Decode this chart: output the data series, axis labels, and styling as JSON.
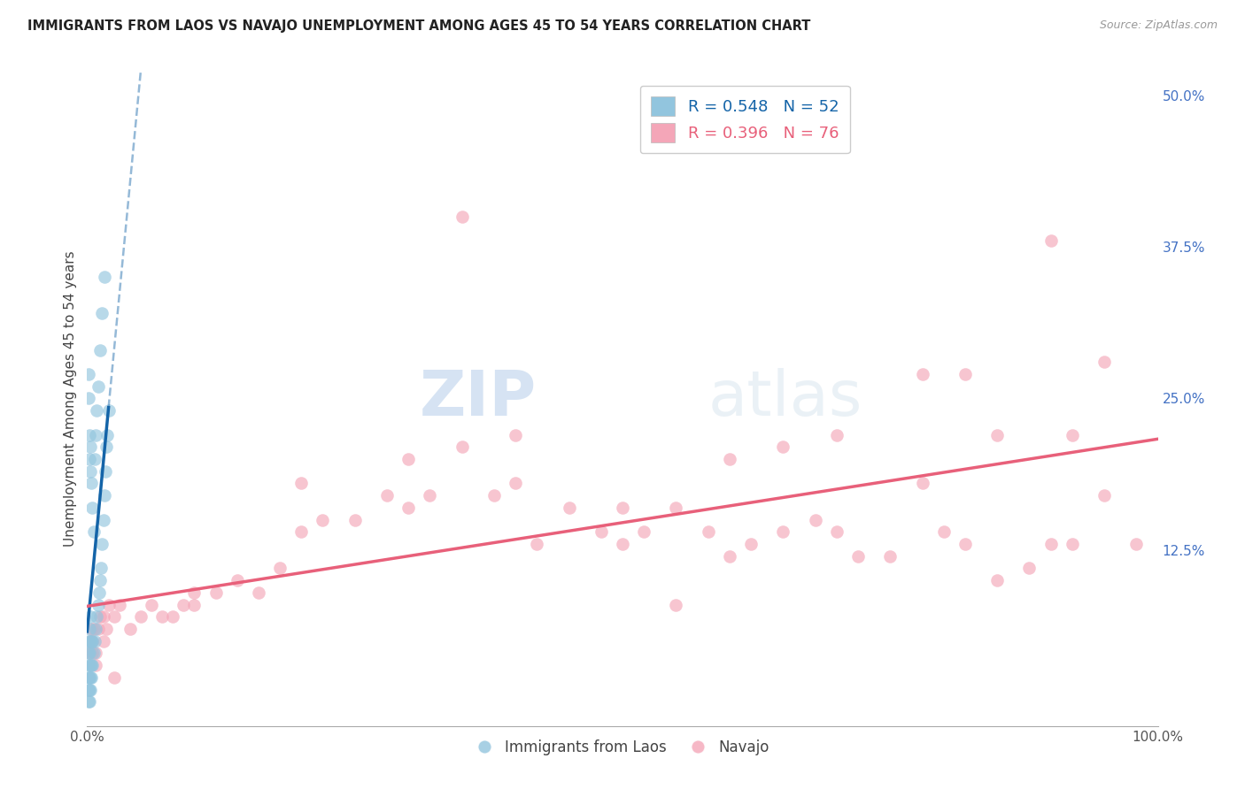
{
  "title": "IMMIGRANTS FROM LAOS VS NAVAJO UNEMPLOYMENT AMONG AGES 45 TO 54 YEARS CORRELATION CHART",
  "source": "Source: ZipAtlas.com",
  "ylabel_text": "Unemployment Among Ages 45 to 54 years",
  "xlim": [
    0,
    1.0
  ],
  "ylim": [
    -0.02,
    0.52
  ],
  "ytick_positions": [
    0.125,
    0.25,
    0.375,
    0.5
  ],
  "ytick_labels": [
    "12.5%",
    "25.0%",
    "37.5%",
    "50.0%"
  ],
  "grid_color": "#cccccc",
  "background_color": "#ffffff",
  "legend_r1": "R = 0.548",
  "legend_n1": "N = 52",
  "legend_r2": "R = 0.396",
  "legend_n2": "N = 76",
  "color_blue": "#92c5de",
  "color_pink": "#f4a6b8",
  "line_blue": "#1464a8",
  "line_pink": "#e8607a",
  "watermark_zip": "ZIP",
  "watermark_atlas": "atlas",
  "laos_x": [
    0.001,
    0.001,
    0.001,
    0.001,
    0.001,
    0.001,
    0.002,
    0.002,
    0.002,
    0.002,
    0.002,
    0.003,
    0.003,
    0.003,
    0.003,
    0.003,
    0.004,
    0.004,
    0.004,
    0.005,
    0.005,
    0.006,
    0.007,
    0.008,
    0.009,
    0.01,
    0.011,
    0.012,
    0.013,
    0.014,
    0.015,
    0.016,
    0.017,
    0.018,
    0.019,
    0.02,
    0.001,
    0.001,
    0.002,
    0.002,
    0.003,
    0.003,
    0.004,
    0.005,
    0.006,
    0.007,
    0.008,
    0.009,
    0.01,
    0.012,
    0.014,
    0.016
  ],
  "laos_y": [
    0.0,
    0.01,
    0.02,
    0.03,
    0.04,
    0.05,
    0.0,
    0.01,
    0.02,
    0.04,
    0.06,
    0.01,
    0.02,
    0.03,
    0.05,
    0.07,
    0.02,
    0.03,
    0.05,
    0.03,
    0.05,
    0.04,
    0.05,
    0.06,
    0.07,
    0.08,
    0.09,
    0.1,
    0.11,
    0.13,
    0.15,
    0.17,
    0.19,
    0.21,
    0.22,
    0.24,
    0.25,
    0.27,
    0.2,
    0.22,
    0.19,
    0.21,
    0.18,
    0.16,
    0.14,
    0.2,
    0.22,
    0.24,
    0.26,
    0.29,
    0.32,
    0.35
  ],
  "navajo_x": [
    0.002,
    0.003,
    0.004,
    0.005,
    0.006,
    0.008,
    0.01,
    0.012,
    0.015,
    0.018,
    0.02,
    0.025,
    0.03,
    0.04,
    0.05,
    0.06,
    0.07,
    0.08,
    0.09,
    0.1,
    0.12,
    0.14,
    0.16,
    0.18,
    0.2,
    0.22,
    0.25,
    0.28,
    0.3,
    0.32,
    0.35,
    0.38,
    0.4,
    0.42,
    0.45,
    0.48,
    0.5,
    0.52,
    0.55,
    0.58,
    0.6,
    0.62,
    0.65,
    0.68,
    0.7,
    0.72,
    0.75,
    0.78,
    0.8,
    0.82,
    0.85,
    0.88,
    0.9,
    0.92,
    0.95,
    0.98,
    0.005,
    0.008,
    0.015,
    0.025,
    0.35,
    0.55,
    0.82,
    0.9,
    0.92,
    0.95,
    0.85,
    0.78,
    0.7,
    0.65,
    0.6,
    0.5,
    0.4,
    0.3,
    0.2,
    0.1
  ],
  "navajo_y": [
    0.04,
    0.05,
    0.06,
    0.05,
    0.06,
    0.04,
    0.06,
    0.07,
    0.07,
    0.06,
    0.08,
    0.07,
    0.08,
    0.06,
    0.07,
    0.08,
    0.07,
    0.07,
    0.08,
    0.09,
    0.09,
    0.1,
    0.09,
    0.11,
    0.14,
    0.15,
    0.15,
    0.17,
    0.16,
    0.17,
    0.21,
    0.17,
    0.22,
    0.13,
    0.16,
    0.14,
    0.13,
    0.14,
    0.16,
    0.14,
    0.12,
    0.13,
    0.14,
    0.15,
    0.14,
    0.12,
    0.12,
    0.18,
    0.14,
    0.13,
    0.1,
    0.11,
    0.13,
    0.13,
    0.17,
    0.13,
    0.04,
    0.03,
    0.05,
    0.02,
    0.4,
    0.08,
    0.27,
    0.38,
    0.22,
    0.28,
    0.22,
    0.27,
    0.22,
    0.21,
    0.2,
    0.16,
    0.18,
    0.2,
    0.18,
    0.08
  ]
}
